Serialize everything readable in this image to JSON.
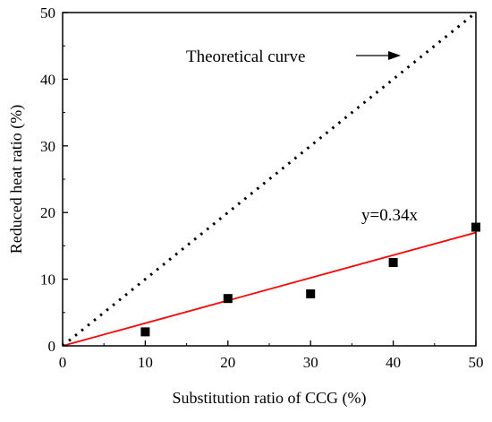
{
  "chart_data": {
    "type": "scatter",
    "xlabel": "Substitution ratio of CCG (%)",
    "ylabel": "Reduced heat ratio (%)",
    "xlim": [
      0,
      50
    ],
    "ylim": [
      0,
      50
    ],
    "xticks": [
      "0",
      "10",
      "20",
      "30",
      "40",
      "50"
    ],
    "yticks": [
      "0",
      "10",
      "20",
      "30",
      "40",
      "50"
    ],
    "grid": false,
    "series": [
      {
        "kind": "scatter",
        "marker": "square",
        "color": "#000000",
        "x": [
          10,
          20,
          30,
          40,
          50
        ],
        "y": [
          2.1,
          7.1,
          7.8,
          12.5,
          17.8
        ]
      },
      {
        "kind": "line",
        "style": "solid",
        "color": "#ff0000",
        "x": [
          0,
          50
        ],
        "y": [
          0,
          17
        ]
      },
      {
        "kind": "line",
        "style": "dotted",
        "color": "#000000",
        "x": [
          0,
          50
        ],
        "y": [
          0,
          50
        ]
      }
    ],
    "annotations": {
      "theoretical": "Theoretical curve",
      "fit": "y=0.34x"
    }
  }
}
